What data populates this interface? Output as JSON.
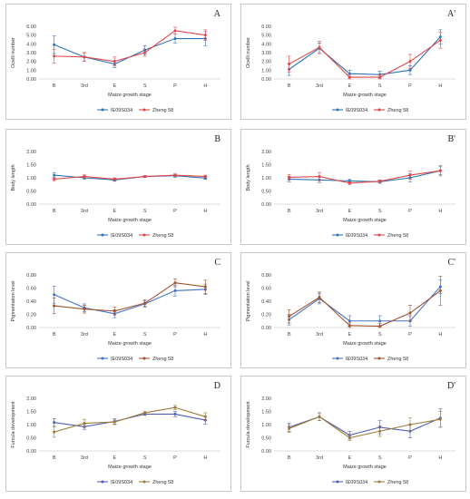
{
  "chart_data": [
    {
      "type": "line",
      "label": "A",
      "xlabel": "Maize growth stage",
      "ylabel": "Ocelli number",
      "categories": [
        "B",
        "3rd",
        "E",
        "S",
        "P",
        "H"
      ],
      "ylim": [
        0,
        6
      ],
      "yticks": [
        "0.00",
        "1.00",
        "2.00",
        "3.00",
        "4.00",
        "5.00",
        "6.00"
      ],
      "series": [
        {
          "name": "IE09S034",
          "values": [
            3.9,
            2.5,
            1.7,
            3.3,
            4.6,
            4.6
          ],
          "err": [
            1.0,
            0.5,
            0.4,
            0.5,
            0.5,
            0.8
          ]
        },
        {
          "name": "Zheng 58",
          "values": [
            2.6,
            2.5,
            2.0,
            3.0,
            5.5,
            5.0
          ],
          "err": [
            0.8,
            0.5,
            0.5,
            0.4,
            0.4,
            0.6
          ]
        }
      ]
    },
    {
      "type": "line",
      "label": "A'",
      "xlabel": "Maize growth stage",
      "ylabel": "Ocelli number",
      "categories": [
        "B",
        "3rd",
        "E",
        "S",
        "P",
        "H"
      ],
      "ylim": [
        0,
        6
      ],
      "yticks": [
        "0.00",
        "1.00",
        "2.00",
        "3.00",
        "4.00",
        "5.00",
        "6.00"
      ],
      "series": [
        {
          "name": "IE09S034",
          "values": [
            1.1,
            3.5,
            0.6,
            0.5,
            1.0,
            4.8
          ],
          "err": [
            0.7,
            0.6,
            0.4,
            0.4,
            0.5,
            0.8
          ]
        },
        {
          "name": "Zheng 58",
          "values": [
            1.7,
            3.6,
            0.2,
            0.2,
            2.0,
            4.4
          ],
          "err": [
            0.9,
            0.7,
            0.3,
            0.3,
            0.8,
            0.9
          ]
        }
      ]
    },
    {
      "type": "line",
      "label": "B",
      "xlabel": "Maize growth stage",
      "ylabel": "Body length",
      "categories": [
        "B",
        "3rd",
        "E",
        "S",
        "P",
        "H"
      ],
      "ylim": [
        0,
        2
      ],
      "yticks": [
        "0.00",
        "0.50",
        "1.00",
        "1.50",
        "2.00"
      ],
      "series": [
        {
          "name": "IE09S034",
          "values": [
            1.1,
            1.0,
            0.92,
            1.05,
            1.08,
            0.99
          ],
          "err": [
            0.1,
            0.05,
            0.05,
            0.03,
            0.06,
            0.05
          ]
        },
        {
          "name": "Zheng 58",
          "values": [
            0.95,
            1.05,
            0.95,
            1.05,
            1.1,
            1.05
          ],
          "err": [
            0.06,
            0.06,
            0.05,
            0.03,
            0.05,
            0.05
          ]
        }
      ]
    },
    {
      "type": "line",
      "label": "B'",
      "xlabel": "Maize growth stage",
      "ylabel": "Body length",
      "categories": [
        "B",
        "3rd",
        "E",
        "S",
        "P",
        "H"
      ],
      "ylim": [
        0,
        2
      ],
      "yticks": [
        "0.00",
        "0.50",
        "1.00",
        "1.50",
        "2.00"
      ],
      "series": [
        {
          "name": "IE09S034",
          "values": [
            0.95,
            0.92,
            0.88,
            0.85,
            1.0,
            1.27
          ],
          "err": [
            0.1,
            0.1,
            0.06,
            0.06,
            0.15,
            0.15
          ]
        },
        {
          "name": "Zheng 58",
          "values": [
            1.02,
            1.05,
            0.8,
            0.87,
            1.1,
            1.27
          ],
          "err": [
            0.1,
            0.15,
            0.05,
            0.05,
            0.15,
            0.2
          ]
        }
      ]
    },
    {
      "type": "line",
      "label": "C",
      "xlabel": "Maize growth stage",
      "ylabel": "Pigmentation level",
      "categories": [
        "B",
        "3rd",
        "E",
        "S",
        "P",
        "H"
      ],
      "ylim": [
        0,
        0.8
      ],
      "yticks": [
        "0.00",
        "0.20",
        "0.40",
        "0.60",
        "0.80"
      ],
      "series": [
        {
          "name": "IE09S034",
          "values": [
            0.5,
            0.3,
            0.21,
            0.36,
            0.56,
            0.58
          ],
          "err": [
            0.13,
            0.06,
            0.06,
            0.05,
            0.08,
            0.08
          ]
        },
        {
          "name": "Zheng 58",
          "values": [
            0.33,
            0.28,
            0.25,
            0.37,
            0.68,
            0.62
          ],
          "err": [
            0.12,
            0.06,
            0.06,
            0.05,
            0.06,
            0.1
          ]
        }
      ]
    },
    {
      "type": "line",
      "label": "C'",
      "xlabel": "Maize growth stage",
      "ylabel": "Pigmentation level",
      "categories": [
        "B",
        "3rd",
        "E",
        "S",
        "P",
        "H"
      ],
      "ylim": [
        0,
        0.8
      ],
      "yticks": [
        "0.00",
        "0.20",
        "0.40",
        "0.60",
        "0.80"
      ],
      "series": [
        {
          "name": "IE09S034",
          "values": [
            0.12,
            0.44,
            0.1,
            0.1,
            0.1,
            0.62
          ],
          "err": [
            0.08,
            0.08,
            0.08,
            0.08,
            0.08,
            0.1
          ]
        },
        {
          "name": "Zheng 58",
          "values": [
            0.17,
            0.46,
            0.03,
            0.02,
            0.22,
            0.56
          ],
          "err": [
            0.1,
            0.08,
            0.04,
            0.04,
            0.12,
            0.22
          ]
        }
      ]
    },
    {
      "type": "line",
      "label": "D",
      "xlabel": "Maize growth stage",
      "ylabel": "Furcula development",
      "categories": [
        "B",
        "3rd",
        "E",
        "S",
        "P",
        "H"
      ],
      "ylim": [
        0,
        2
      ],
      "yticks": [
        "0.00",
        "0.50",
        "1.00",
        "1.50",
        "2.00"
      ],
      "series": [
        {
          "name": "IE09S034",
          "values": [
            1.08,
            0.92,
            1.12,
            1.4,
            1.4,
            1.17
          ],
          "err": [
            0.15,
            0.1,
            0.1,
            0.05,
            0.1,
            0.15
          ]
        },
        {
          "name": "Zheng 58",
          "values": [
            0.72,
            1.05,
            1.1,
            1.45,
            1.65,
            1.3
          ],
          "err": [
            0.2,
            0.15,
            0.1,
            0.05,
            0.08,
            0.15
          ]
        }
      ]
    },
    {
      "type": "line",
      "label": "D'",
      "xlabel": "Maize growth stage",
      "ylabel": "Furcula development",
      "categories": [
        "B",
        "3rd",
        "E",
        "S",
        "P",
        "H"
      ],
      "ylim": [
        0,
        2
      ],
      "yticks": [
        "0.00",
        "0.50",
        "1.00",
        "1.50",
        "2.00"
      ],
      "series": [
        {
          "name": "IE09S034",
          "values": [
            0.9,
            1.3,
            0.6,
            0.9,
            0.75,
            1.25
          ],
          "err": [
            0.15,
            0.15,
            0.15,
            0.25,
            0.25,
            0.35
          ]
        },
        {
          "name": "Zheng 58",
          "values": [
            0.85,
            1.3,
            0.5,
            0.75,
            1.0,
            1.2
          ],
          "err": [
            0.15,
            0.15,
            0.1,
            0.2,
            0.25,
            0.3
          ]
        }
      ]
    }
  ],
  "colors": {
    "row_A_B": [
      "#2e75b6",
      "#e0474c"
    ],
    "row_C": [
      "#4472c4",
      "#a0522d"
    ],
    "row_D": [
      "#4f5fb5",
      "#9e7b3c"
    ]
  }
}
